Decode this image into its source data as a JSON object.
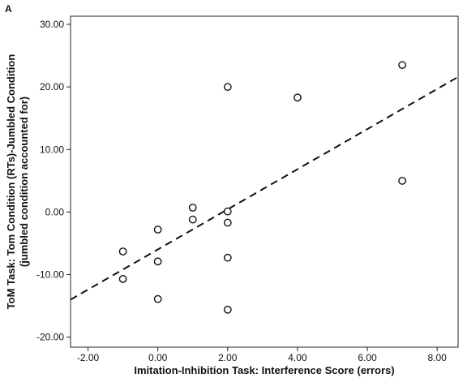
{
  "chart_data": {
    "type": "scatter",
    "panel_label": "A",
    "xlabel": "Imitation-Inhibition Task: Interference Score (errors)",
    "ylabel_line1": "ToM Task: Tom Condition (RTs)-Jumbled Condition",
    "ylabel_line2": "(jumbled condition accounted for)",
    "xlim": [
      -2.5,
      8.6
    ],
    "ylim": [
      -21.6,
      31.3
    ],
    "x_ticks": [
      -2,
      0,
      2,
      4,
      6,
      8
    ],
    "x_tick_labels": [
      "-2.00",
      "0.00",
      "2.00",
      "4.00",
      "6.00",
      "8.00"
    ],
    "y_ticks": [
      -20,
      -10,
      0,
      10,
      20,
      30
    ],
    "y_tick_labels": [
      "-20.00",
      "-10.00",
      "0.00",
      "10.00",
      "20.00",
      "30.00"
    ],
    "grid": false,
    "points": [
      {
        "x": -1,
        "y": -6.3
      },
      {
        "x": -1,
        "y": -10.7
      },
      {
        "x": 0,
        "y": -2.8
      },
      {
        "x": 0,
        "y": -7.9
      },
      {
        "x": 0,
        "y": -13.9
      },
      {
        "x": 1,
        "y": 0.7
      },
      {
        "x": 1,
        "y": -1.2
      },
      {
        "x": 2,
        "y": 20.0
      },
      {
        "x": 2,
        "y": 0.1
      },
      {
        "x": 2,
        "y": -1.7
      },
      {
        "x": 2,
        "y": -7.3
      },
      {
        "x": 2,
        "y": -15.6
      },
      {
        "x": 4,
        "y": 18.3
      },
      {
        "x": 7,
        "y": 23.5
      },
      {
        "x": 7,
        "y": 5.0
      }
    ],
    "fit_line": {
      "style": "dashed",
      "x": [
        -2.5,
        8.6
      ],
      "y": [
        -14.0,
        21.6
      ]
    }
  }
}
